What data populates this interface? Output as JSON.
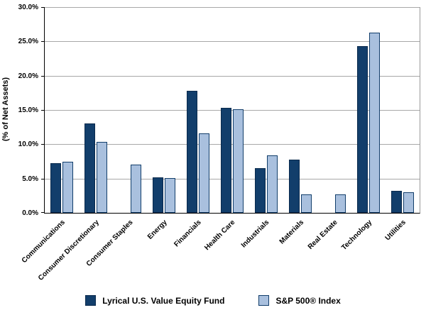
{
  "chart_data": {
    "type": "bar",
    "title": "",
    "ylabel": "(% of Net Assets)",
    "xlabel": "",
    "ylim": [
      0,
      30
    ],
    "ytick_step": 5,
    "ytick_labels": [
      "0.0%",
      "5.0%",
      "10.0%",
      "15.0%",
      "20.0%",
      "25.0%",
      "30.0%"
    ],
    "grid": true,
    "legend_position": "bottom",
    "categories": [
      "Communications",
      "Consumer Discretionary",
      "Consumer Staples",
      "Energy",
      "Financials",
      "Health Care",
      "Industrials",
      "Materials",
      "Real Estate",
      "Technology",
      "Utilities"
    ],
    "series": [
      {
        "name": "Lyrical U.S. Value Equity Fund",
        "color": "#123e6b",
        "border_color": "#0a2a4d",
        "values": [
          7.2,
          13.0,
          0,
          5.2,
          17.8,
          15.3,
          6.5,
          7.8,
          0,
          24.3,
          3.2
        ]
      },
      {
        "name": "S&P 500® Index",
        "color": "#a9c0de",
        "border_color": "#123e6b",
        "values": [
          7.5,
          10.3,
          7.0,
          5.1,
          11.6,
          15.1,
          8.4,
          2.7,
          2.7,
          26.3,
          3.0
        ]
      }
    ],
    "colors": {
      "fund_bar": "#123e6b",
      "index_bar": "#a9c0de",
      "gridline": "#a8a8a8",
      "axis": "#000000"
    }
  }
}
